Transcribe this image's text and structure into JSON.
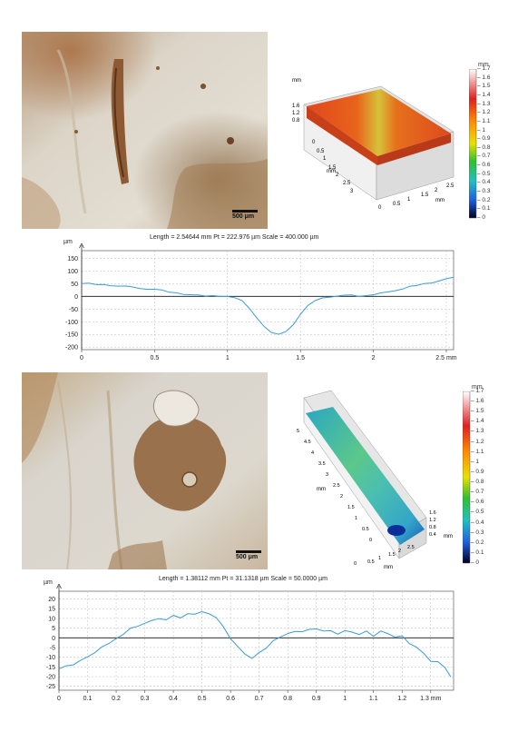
{
  "scale_bars": {
    "top": "500 μm",
    "bottom": "500 μm"
  },
  "colors": {
    "profile_line": "#3a9bd9",
    "grid": "#bdbdbd",
    "axis": "#111111"
  },
  "colorbar_top": {
    "unit": "mm",
    "ticks": [
      "1.7",
      "1.6",
      "1.5",
      "1.4",
      "1.3",
      "1.2",
      "1.1",
      "1",
      "0.9",
      "0.8",
      "0.7",
      "0.6",
      "0.5",
      "0.4",
      "0.3",
      "0.2",
      "0.1",
      "0"
    ]
  },
  "colorbar_bottom": {
    "unit": "mm",
    "ticks": [
      "1.7",
      "1.6",
      "1.5",
      "1.4",
      "1.3",
      "1.2",
      "1.1",
      "1",
      "0.9",
      "0.8",
      "0.7",
      "0.6",
      "0.5",
      "0.4",
      "0.3",
      "0.2",
      "0.1",
      "0"
    ]
  },
  "surface_top": {
    "z_label": "mm",
    "z_ticks": [
      "1.6",
      "1.2",
      "0.8"
    ],
    "y_label": "mm",
    "y_ticks": [
      "0",
      "0.5",
      "1",
      "1.5",
      "2",
      "2.5",
      "3"
    ],
    "x_label": "mm",
    "x_ticks": [
      "0",
      "0.5",
      "1",
      "1.5",
      "2",
      "2.5"
    ]
  },
  "surface_bottom": {
    "z_label": "mm",
    "z_ticks": [
      "1.6",
      "1.2",
      "0.8",
      "0.4"
    ],
    "y_label": "mm",
    "y_ticks": [
      "0",
      "0.5",
      "1",
      "1.5",
      "2",
      "2.5",
      "3",
      "3.5",
      "4",
      "4.5",
      "5"
    ],
    "x_label": "mm",
    "x_ticks": [
      "0",
      "0.5",
      "1",
      "1.5",
      "2",
      "2.5"
    ]
  },
  "chart_data": [
    {
      "type": "line",
      "title": "Length = 2.54644 mm  Pt = 222.976 µm  Scale = 400.000 µm",
      "ylabel": "µm",
      "xlabel": "mm",
      "xlim": [
        0,
        2.55
      ],
      "ylim": [
        -210,
        180
      ],
      "x_ticks": [
        0,
        0.5,
        1,
        1.5,
        2,
        2.5
      ],
      "x_tick_labels": [
        "0",
        "0.5",
        "1",
        "1.5",
        "2",
        "2.5 mm"
      ],
      "y_ticks": [
        150,
        100,
        50,
        0,
        -50,
        -100,
        -150,
        -200
      ],
      "grid": true,
      "series": [
        {
          "x": [
            0,
            0.05,
            0.1,
            0.15,
            0.2,
            0.25,
            0.3,
            0.35,
            0.4,
            0.45,
            0.5,
            0.55,
            0.6,
            0.65,
            0.7,
            0.75,
            0.8,
            0.85,
            0.9,
            0.95,
            1.0,
            1.05,
            1.1,
            1.15,
            1.2,
            1.25,
            1.3,
            1.35,
            1.4,
            1.45,
            1.5,
            1.55,
            1.6,
            1.65,
            1.7,
            1.75,
            1.8,
            1.85,
            1.9,
            1.95,
            2.0,
            2.05,
            2.1,
            2.15,
            2.2,
            2.25,
            2.3,
            2.35,
            2.4,
            2.45,
            2.5,
            2.55
          ],
          "values": [
            50,
            48,
            46,
            44,
            40,
            38,
            38,
            36,
            34,
            30,
            28,
            26,
            20,
            14,
            8,
            4,
            1,
            -1,
            0,
            -2,
            -4,
            -8,
            -20,
            -45,
            -80,
            -115,
            -140,
            -145,
            -135,
            -110,
            -75,
            -40,
            -18,
            -8,
            -4,
            -2,
            0,
            1,
            2,
            4,
            8,
            14,
            20,
            26,
            30,
            36,
            42,
            48,
            52,
            60,
            68,
            75
          ]
        }
      ]
    },
    {
      "type": "line",
      "title": "Length = 1.38112 mm  Pt = 31.1318 µm  Scale = 50.0000 µm",
      "ylabel": "µm",
      "xlabel": "mm",
      "xlim": [
        0,
        1.38
      ],
      "ylim": [
        -27,
        24
      ],
      "x_ticks": [
        0,
        0.1,
        0.2,
        0.3,
        0.4,
        0.5,
        0.6,
        0.7,
        0.8,
        0.9,
        1,
        1.1,
        1.2,
        1.3
      ],
      "x_tick_labels": [
        "0",
        "0.1",
        "0.2",
        "0.3",
        "0.4",
        "0.5",
        "0.6",
        "0.7",
        "0.8",
        "0.9",
        "1",
        "1.1",
        "1.2",
        "1.3 mm"
      ],
      "y_ticks": [
        20,
        15,
        10,
        5,
        0,
        -5,
        -10,
        -15,
        -20,
        -25
      ],
      "grid": true,
      "series": [
        {
          "x": [
            0,
            0.025,
            0.05,
            0.075,
            0.1,
            0.125,
            0.15,
            0.175,
            0.2,
            0.225,
            0.25,
            0.275,
            0.3,
            0.325,
            0.35,
            0.375,
            0.4,
            0.425,
            0.45,
            0.475,
            0.5,
            0.525,
            0.55,
            0.575,
            0.6,
            0.625,
            0.65,
            0.675,
            0.7,
            0.725,
            0.75,
            0.775,
            0.8,
            0.825,
            0.85,
            0.875,
            0.9,
            0.925,
            0.95,
            0.975,
            1.0,
            1.025,
            1.05,
            1.075,
            1.1,
            1.125,
            1.15,
            1.175,
            1.2,
            1.225,
            1.25,
            1.275,
            1.3,
            1.325,
            1.35,
            1.37
          ],
          "values": [
            -16,
            -15,
            -14,
            -12,
            -10,
            -8,
            -5,
            -3,
            0,
            2,
            5,
            6,
            8,
            9,
            10,
            9,
            11,
            10,
            12,
            12,
            13,
            12,
            10,
            6,
            0,
            -4,
            -8,
            -10,
            -7,
            -5,
            -2,
            0,
            2,
            3,
            3,
            4,
            4,
            3,
            4,
            2,
            4,
            3,
            2,
            4,
            1,
            3,
            2,
            0,
            1,
            -3,
            -5,
            -8,
            -12,
            -12,
            -15,
            -20
          ]
        }
      ]
    }
  ]
}
